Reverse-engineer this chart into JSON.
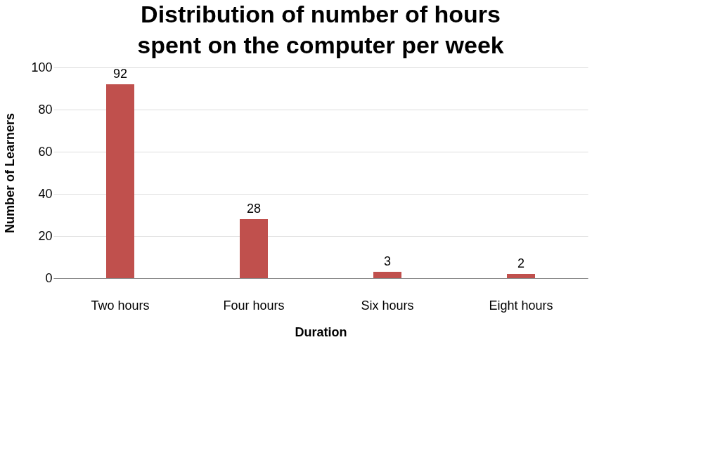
{
  "chart_data": {
    "type": "bar",
    "title": "Distribution of number of hours spent on the computer per week",
    "categories": [
      "Two hours",
      "Four hours",
      "Six hours",
      "Eight hours"
    ],
    "values": [
      92,
      28,
      3,
      2
    ],
    "color": "#c0504d",
    "xlabel": "Duration",
    "ylabel": "Number of Learners",
    "ylim": [
      0,
      100
    ],
    "yticks": [
      0,
      20,
      40,
      60,
      80,
      100
    ],
    "grid": "y",
    "data_labels": true
  }
}
